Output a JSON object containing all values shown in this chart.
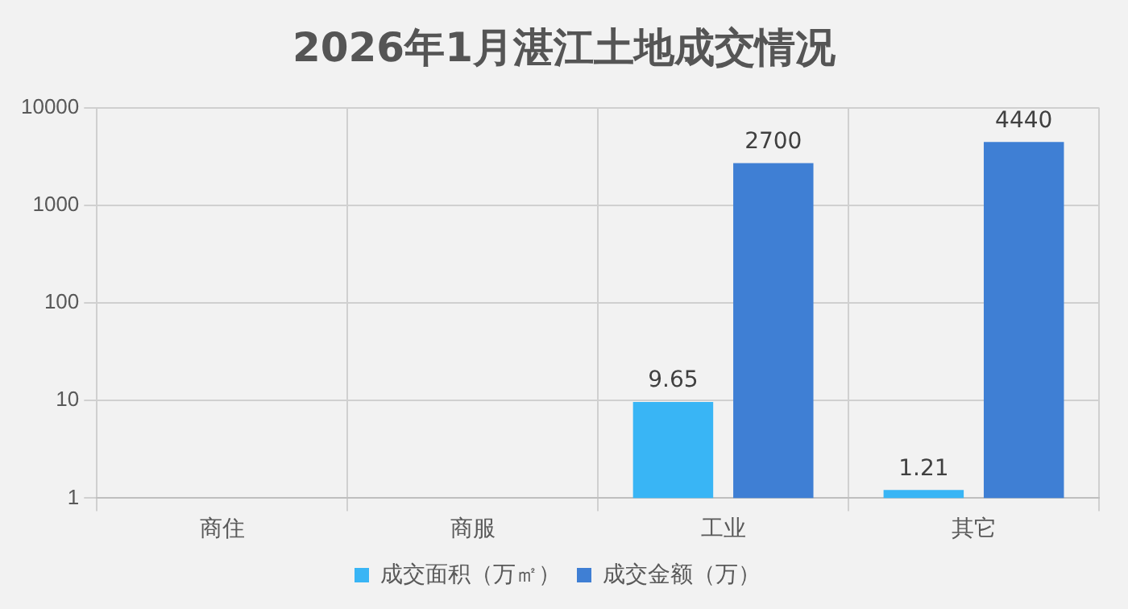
{
  "chart_data": {
    "type": "bar",
    "title": "2026年1月湛江土地成交情况",
    "categories": [
      "商住",
      "商服",
      "工业",
      "其它"
    ],
    "series": [
      {
        "name": "成交面积（万㎡）",
        "color": "#39b5f5",
        "values": [
          null,
          null,
          9.65,
          1.21
        ]
      },
      {
        "name": "成交金额（万）",
        "color": "#3f7fd4",
        "values": [
          null,
          null,
          2700,
          4440
        ]
      }
    ],
    "log": true,
    "ylim": [
      1,
      10000
    ],
    "yticks": [
      1,
      10,
      100,
      1000,
      10000
    ],
    "grid": true,
    "legend": "bottom",
    "data_labels": true
  }
}
